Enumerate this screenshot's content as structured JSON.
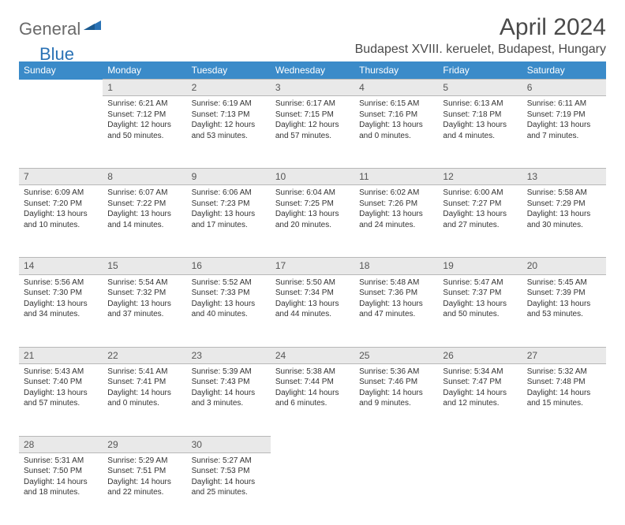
{
  "brand": {
    "part1": "General",
    "part2": "Blue"
  },
  "title": "April 2024",
  "location": "Budapest XVIII. keruelet, Budapest, Hungary",
  "colors": {
    "header_bg": "#3b8bc9",
    "header_text": "#ffffff",
    "daynum_bg": "#e9e9e9",
    "daynum_border": "#b8b8b8",
    "body_text": "#333333",
    "brand_gray": "#6a6a6a",
    "brand_blue": "#2a72b5",
    "page_bg": "#ffffff"
  },
  "weekdays": [
    "Sunday",
    "Monday",
    "Tuesday",
    "Wednesday",
    "Thursday",
    "Friday",
    "Saturday"
  ],
  "weeks": [
    {
      "nums": [
        "",
        "1",
        "2",
        "3",
        "4",
        "5",
        "6"
      ],
      "cells": [
        {
          "lines": []
        },
        {
          "lines": [
            "Sunrise: 6:21 AM",
            "Sunset: 7:12 PM",
            "Daylight: 12 hours",
            "and 50 minutes."
          ]
        },
        {
          "lines": [
            "Sunrise: 6:19 AM",
            "Sunset: 7:13 PM",
            "Daylight: 12 hours",
            "and 53 minutes."
          ]
        },
        {
          "lines": [
            "Sunrise: 6:17 AM",
            "Sunset: 7:15 PM",
            "Daylight: 12 hours",
            "and 57 minutes."
          ]
        },
        {
          "lines": [
            "Sunrise: 6:15 AM",
            "Sunset: 7:16 PM",
            "Daylight: 13 hours",
            "and 0 minutes."
          ]
        },
        {
          "lines": [
            "Sunrise: 6:13 AM",
            "Sunset: 7:18 PM",
            "Daylight: 13 hours",
            "and 4 minutes."
          ]
        },
        {
          "lines": [
            "Sunrise: 6:11 AM",
            "Sunset: 7:19 PM",
            "Daylight: 13 hours",
            "and 7 minutes."
          ]
        }
      ]
    },
    {
      "nums": [
        "7",
        "8",
        "9",
        "10",
        "11",
        "12",
        "13"
      ],
      "cells": [
        {
          "lines": [
            "Sunrise: 6:09 AM",
            "Sunset: 7:20 PM",
            "Daylight: 13 hours",
            "and 10 minutes."
          ]
        },
        {
          "lines": [
            "Sunrise: 6:07 AM",
            "Sunset: 7:22 PM",
            "Daylight: 13 hours",
            "and 14 minutes."
          ]
        },
        {
          "lines": [
            "Sunrise: 6:06 AM",
            "Sunset: 7:23 PM",
            "Daylight: 13 hours",
            "and 17 minutes."
          ]
        },
        {
          "lines": [
            "Sunrise: 6:04 AM",
            "Sunset: 7:25 PM",
            "Daylight: 13 hours",
            "and 20 minutes."
          ]
        },
        {
          "lines": [
            "Sunrise: 6:02 AM",
            "Sunset: 7:26 PM",
            "Daylight: 13 hours",
            "and 24 minutes."
          ]
        },
        {
          "lines": [
            "Sunrise: 6:00 AM",
            "Sunset: 7:27 PM",
            "Daylight: 13 hours",
            "and 27 minutes."
          ]
        },
        {
          "lines": [
            "Sunrise: 5:58 AM",
            "Sunset: 7:29 PM",
            "Daylight: 13 hours",
            "and 30 minutes."
          ]
        }
      ]
    },
    {
      "nums": [
        "14",
        "15",
        "16",
        "17",
        "18",
        "19",
        "20"
      ],
      "cells": [
        {
          "lines": [
            "Sunrise: 5:56 AM",
            "Sunset: 7:30 PM",
            "Daylight: 13 hours",
            "and 34 minutes."
          ]
        },
        {
          "lines": [
            "Sunrise: 5:54 AM",
            "Sunset: 7:32 PM",
            "Daylight: 13 hours",
            "and 37 minutes."
          ]
        },
        {
          "lines": [
            "Sunrise: 5:52 AM",
            "Sunset: 7:33 PM",
            "Daylight: 13 hours",
            "and 40 minutes."
          ]
        },
        {
          "lines": [
            "Sunrise: 5:50 AM",
            "Sunset: 7:34 PM",
            "Daylight: 13 hours",
            "and 44 minutes."
          ]
        },
        {
          "lines": [
            "Sunrise: 5:48 AM",
            "Sunset: 7:36 PM",
            "Daylight: 13 hours",
            "and 47 minutes."
          ]
        },
        {
          "lines": [
            "Sunrise: 5:47 AM",
            "Sunset: 7:37 PM",
            "Daylight: 13 hours",
            "and 50 minutes."
          ]
        },
        {
          "lines": [
            "Sunrise: 5:45 AM",
            "Sunset: 7:39 PM",
            "Daylight: 13 hours",
            "and 53 minutes."
          ]
        }
      ]
    },
    {
      "nums": [
        "21",
        "22",
        "23",
        "24",
        "25",
        "26",
        "27"
      ],
      "cells": [
        {
          "lines": [
            "Sunrise: 5:43 AM",
            "Sunset: 7:40 PM",
            "Daylight: 13 hours",
            "and 57 minutes."
          ]
        },
        {
          "lines": [
            "Sunrise: 5:41 AM",
            "Sunset: 7:41 PM",
            "Daylight: 14 hours",
            "and 0 minutes."
          ]
        },
        {
          "lines": [
            "Sunrise: 5:39 AM",
            "Sunset: 7:43 PM",
            "Daylight: 14 hours",
            "and 3 minutes."
          ]
        },
        {
          "lines": [
            "Sunrise: 5:38 AM",
            "Sunset: 7:44 PM",
            "Daylight: 14 hours",
            "and 6 minutes."
          ]
        },
        {
          "lines": [
            "Sunrise: 5:36 AM",
            "Sunset: 7:46 PM",
            "Daylight: 14 hours",
            "and 9 minutes."
          ]
        },
        {
          "lines": [
            "Sunrise: 5:34 AM",
            "Sunset: 7:47 PM",
            "Daylight: 14 hours",
            "and 12 minutes."
          ]
        },
        {
          "lines": [
            "Sunrise: 5:32 AM",
            "Sunset: 7:48 PM",
            "Daylight: 14 hours",
            "and 15 minutes."
          ]
        }
      ]
    },
    {
      "nums": [
        "28",
        "29",
        "30",
        "",
        "",
        "",
        ""
      ],
      "cells": [
        {
          "lines": [
            "Sunrise: 5:31 AM",
            "Sunset: 7:50 PM",
            "Daylight: 14 hours",
            "and 18 minutes."
          ]
        },
        {
          "lines": [
            "Sunrise: 5:29 AM",
            "Sunset: 7:51 PM",
            "Daylight: 14 hours",
            "and 22 minutes."
          ]
        },
        {
          "lines": [
            "Sunrise: 5:27 AM",
            "Sunset: 7:53 PM",
            "Daylight: 14 hours",
            "and 25 minutes."
          ]
        },
        {
          "lines": []
        },
        {
          "lines": []
        },
        {
          "lines": []
        },
        {
          "lines": []
        }
      ]
    }
  ]
}
